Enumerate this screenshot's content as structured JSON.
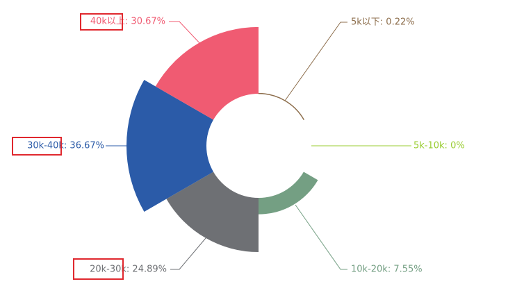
{
  "chart_data": {
    "type": "pie",
    "rose": true,
    "values": [
      0.22,
      0,
      7.55,
      24.89,
      36.67,
      30.67
    ],
    "value_labels": [
      "5k以下: 0.22%",
      "5k-10k: 0%",
      "10k-20k: 7.55%",
      "20k-30k: 24.89%",
      "30k-40k: 36.67%",
      "40k以上: 30.67%"
    ],
    "colors": [
      "#8d6e4c",
      "#9acd32",
      "#749f83",
      "#6e7074",
      "#2b5ba8",
      "#f05b72"
    ]
  }
}
